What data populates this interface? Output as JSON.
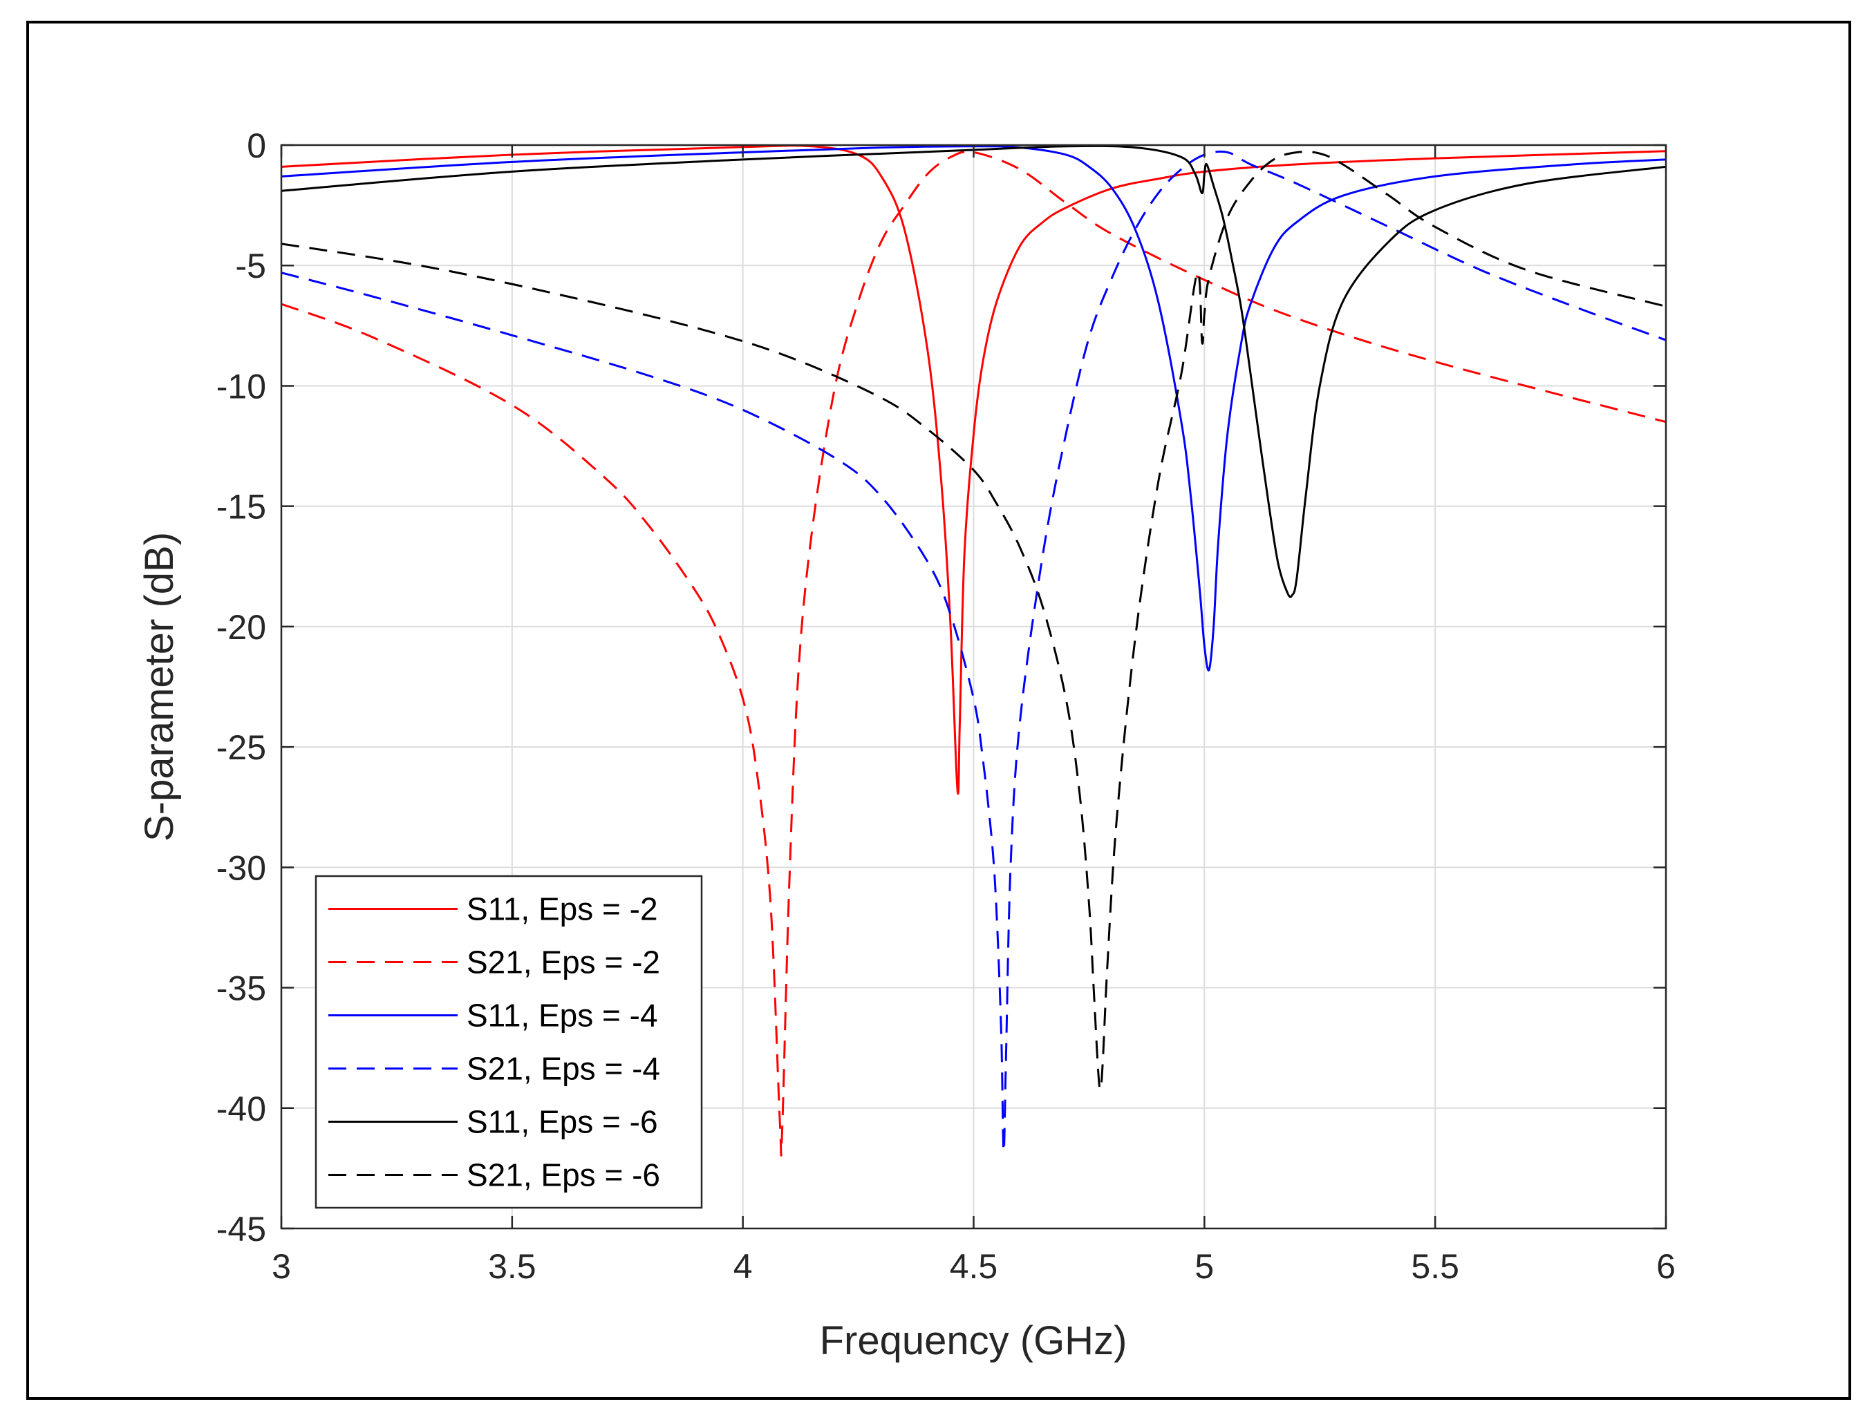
{
  "chart_data": {
    "type": "line",
    "title": "",
    "xlabel": "Frequency (GHz)",
    "ylabel": "S-parameter (dB)",
    "xlim": [
      3,
      6
    ],
    "ylim": [
      -45,
      0
    ],
    "xticks": [
      3,
      3.5,
      4,
      4.5,
      5,
      5.5,
      6
    ],
    "xtick_labels": [
      "3",
      "3.5",
      "4",
      "4.5",
      "5",
      "5.5",
      "6"
    ],
    "yticks": [
      0,
      -5,
      -10,
      -15,
      -20,
      -25,
      -30,
      -35,
      -40,
      -45
    ],
    "ytick_labels": [
      "0",
      "-5",
      "-10",
      "-15",
      "-20",
      "-25",
      "-30",
      "-35",
      "-40",
      "-45"
    ],
    "grid": true,
    "legend_position": "bottom-left",
    "series": [
      {
        "name": "S11, Eps = -2",
        "color": "#ff0000",
        "dash": "solid",
        "x": [
          3.0,
          3.5,
          4.0,
          4.15,
          4.25,
          4.3,
          4.35,
          4.4,
          4.43,
          4.45,
          4.465,
          4.47,
          4.48,
          4.5,
          4.52,
          4.55,
          4.6,
          4.65,
          4.7,
          4.8,
          4.9,
          5.0,
          5.2,
          5.5,
          6.0
        ],
        "y": [
          -0.9,
          -0.4,
          -0.08,
          -0.05,
          -0.4,
          -1.3,
          -3.5,
          -8.5,
          -14.0,
          -20.0,
          -26.8,
          -24.0,
          -17.0,
          -12.0,
          -9.0,
          -6.5,
          -4.2,
          -3.2,
          -2.6,
          -1.8,
          -1.4,
          -1.1,
          -0.8,
          -0.55,
          -0.25
        ]
      },
      {
        "name": "S21, Eps = -2",
        "color": "#ff0000",
        "dash": "dashed",
        "x": [
          3.0,
          3.2,
          3.5,
          3.7,
          3.8,
          3.9,
          3.95,
          4.0,
          4.03,
          4.06,
          4.08,
          4.085,
          4.1,
          4.12,
          4.15,
          4.2,
          4.25,
          4.3,
          4.35,
          4.4,
          4.45,
          4.5,
          4.6,
          4.7,
          4.8,
          5.0,
          5.2,
          5.5,
          6.0
        ],
        "y": [
          -6.6,
          -8.0,
          -10.8,
          -13.8,
          -15.9,
          -18.6,
          -20.4,
          -23.0,
          -26.0,
          -31.5,
          -40.5,
          -41.0,
          -31.0,
          -22.0,
          -16.0,
          -10.0,
          -6.5,
          -4.0,
          -2.5,
          -1.2,
          -0.5,
          -0.3,
          -1.0,
          -2.4,
          -3.7,
          -5.6,
          -7.2,
          -9.0,
          -11.5
        ]
      },
      {
        "name": "S11, Eps = -4",
        "color": "#0000ff",
        "dash": "solid",
        "x": [
          3.0,
          3.5,
          4.0,
          4.3,
          4.5,
          4.6,
          4.7,
          4.75,
          4.8,
          4.85,
          4.9,
          4.95,
          4.97,
          4.99,
          5.0,
          5.01,
          5.02,
          5.03,
          5.05,
          5.08,
          5.1,
          5.15,
          5.2,
          5.3,
          5.5,
          5.8,
          6.0
        ],
        "y": [
          -1.3,
          -0.7,
          -0.3,
          -0.1,
          -0.05,
          -0.1,
          -0.4,
          -0.9,
          -1.8,
          -3.5,
          -6.5,
          -11.5,
          -14.5,
          -18.5,
          -20.8,
          -21.8,
          -20.0,
          -16.5,
          -12.0,
          -8.2,
          -6.6,
          -4.3,
          -3.2,
          -2.1,
          -1.3,
          -0.8,
          -0.6
        ]
      },
      {
        "name": "S21, Eps = -4",
        "color": "#0000ff",
        "dash": "dashed",
        "x": [
          3.0,
          3.2,
          3.5,
          3.8,
          4.0,
          4.2,
          4.3,
          4.4,
          4.45,
          4.5,
          4.52,
          4.54,
          4.55,
          4.56,
          4.565,
          4.57,
          4.58,
          4.6,
          4.65,
          4.7,
          4.75,
          4.8,
          4.85,
          4.9,
          4.95,
          5.0,
          5.05,
          5.1,
          5.2,
          5.4,
          5.6,
          5.8,
          6.0
        ],
        "y": [
          -5.3,
          -6.3,
          -7.9,
          -9.6,
          -11.0,
          -13.0,
          -14.6,
          -17.3,
          -19.5,
          -23.0,
          -25.5,
          -29.0,
          -32.0,
          -37.0,
          -41.8,
          -38.0,
          -30.0,
          -24.0,
          -17.0,
          -12.0,
          -8.0,
          -5.5,
          -3.5,
          -2.0,
          -1.0,
          -0.4,
          -0.3,
          -0.8,
          -1.6,
          -3.4,
          -5.2,
          -6.7,
          -8.1
        ]
      },
      {
        "name": "S11, Eps = -6",
        "color": "#000000",
        "dash": "solid",
        "x": [
          3.0,
          3.5,
          4.0,
          4.5,
          4.7,
          4.85,
          4.95,
          4.98,
          4.995,
          5.0,
          5.005,
          5.02,
          5.04,
          5.06,
          5.08,
          5.1,
          5.12,
          5.14,
          5.16,
          5.18,
          5.19,
          5.2,
          5.22,
          5.25,
          5.3,
          5.4,
          5.5,
          5.7,
          6.0
        ],
        "y": [
          -1.9,
          -1.1,
          -0.6,
          -0.2,
          -0.05,
          -0.1,
          -0.5,
          -1.2,
          -2.0,
          -1.2,
          -0.8,
          -1.7,
          -3.0,
          -4.8,
          -6.8,
          -9.5,
          -12.3,
          -15.0,
          -17.4,
          -18.6,
          -18.7,
          -18.0,
          -14.5,
          -10.0,
          -6.5,
          -4.0,
          -2.7,
          -1.6,
          -0.9
        ]
      },
      {
        "name": "S21, Eps = -6",
        "color": "#000000",
        "dash": "dashed",
        "x": [
          3.0,
          3.3,
          3.6,
          3.9,
          4.1,
          4.3,
          4.4,
          4.5,
          4.55,
          4.6,
          4.65,
          4.7,
          4.73,
          4.75,
          4.76,
          4.77,
          4.775,
          4.78,
          4.79,
          4.81,
          4.85,
          4.9,
          4.95,
          4.985,
          4.995,
          5.0,
          5.01,
          5.05,
          5.1,
          5.15,
          5.2,
          5.25,
          5.3,
          5.4,
          5.5,
          5.7,
          6.0
        ],
        "y": [
          -4.1,
          -5.0,
          -6.2,
          -7.6,
          -8.8,
          -10.5,
          -11.8,
          -13.5,
          -14.9,
          -16.7,
          -19.2,
          -23.0,
          -27.0,
          -31.5,
          -35.0,
          -38.5,
          -39.2,
          -38.0,
          -34.0,
          -28.0,
          -20.5,
          -14.0,
          -9.5,
          -5.3,
          -8.2,
          -7.0,
          -5.5,
          -3.0,
          -1.5,
          -0.6,
          -0.3,
          -0.35,
          -0.8,
          -2.1,
          -3.4,
          -5.2,
          -6.7
        ]
      }
    ]
  }
}
